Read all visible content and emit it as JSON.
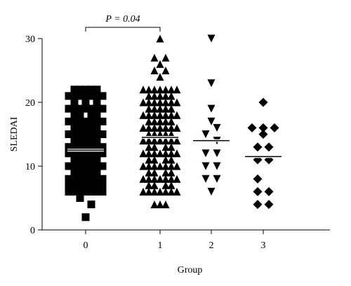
{
  "chart_data": {
    "type": "scatter",
    "subtype": "dot-plot",
    "xlabel": "Group",
    "ylabel": "SLEDAI",
    "categories": [
      "0",
      "1",
      "2",
      "3"
    ],
    "ylim": [
      0,
      30
    ],
    "yticks": [
      0,
      10,
      20,
      30
    ],
    "grid": false,
    "legend": "none",
    "marker_color": "#000000",
    "annotations": [
      {
        "text": "P = 0.04",
        "between": [
          "0",
          "1"
        ]
      }
    ],
    "series": [
      {
        "category": "0",
        "marker": "square",
        "median": 12.5,
        "points": [
          {
            "y": 2,
            "offsets": [
              0
            ]
          },
          {
            "y": 4,
            "offsets": [
              1
            ]
          },
          {
            "y": 5,
            "offsets": [
              -1
            ]
          },
          {
            "y": 6,
            "offsets": [
              -3,
              -2,
              -1,
              0,
              1,
              2,
              3
            ]
          },
          {
            "y": 7,
            "offsets": [
              -3,
              -2,
              -1,
              0,
              1,
              2,
              3
            ]
          },
          {
            "y": 8,
            "offsets": [
              -3,
              -2,
              -1,
              0,
              1,
              2,
              3
            ]
          },
          {
            "y": 9,
            "offsets": [
              -2,
              -1,
              0,
              1,
              2
            ]
          },
          {
            "y": 10,
            "offsets": [
              -3,
              -2,
              -1,
              0,
              1,
              2,
              3
            ]
          },
          {
            "y": 11,
            "offsets": [
              -2,
              -1,
              0,
              1,
              2
            ]
          },
          {
            "y": 12,
            "offsets": [
              -3,
              -2,
              -1,
              0,
              1,
              2,
              3
            ]
          },
          {
            "y": 13,
            "offsets": [
              -3,
              -2,
              -1,
              0,
              1,
              2,
              3
            ]
          },
          {
            "y": 14,
            "offsets": [
              -2,
              -1,
              0,
              1,
              2
            ]
          },
          {
            "y": 15,
            "offsets": [
              -3,
              -2,
              -1,
              0,
              1,
              2,
              3
            ]
          },
          {
            "y": 16,
            "offsets": [
              -2,
              -1,
              0,
              1,
              2
            ]
          },
          {
            "y": 17,
            "offsets": [
              -3,
              -2,
              -1,
              0,
              1,
              2,
              3
            ]
          },
          {
            "y": 18,
            "offsets": [
              -2,
              -1,
              1,
              2
            ]
          },
          {
            "y": 19,
            "offsets": [
              -3,
              -2,
              -1,
              0,
              1,
              2,
              3
            ]
          },
          {
            "y": 20,
            "offsets": [
              -2,
              0,
              2
            ]
          },
          {
            "y": 21,
            "offsets": [
              -3,
              -2,
              -1,
              0,
              1,
              2,
              3
            ]
          },
          {
            "y": 22,
            "offsets": [
              -2,
              -1,
              0,
              1,
              2
            ]
          }
        ]
      },
      {
        "category": "1",
        "marker": "triangle-up",
        "median": 14.5,
        "points": [
          {
            "y": 4,
            "offsets": [
              -1,
              0,
              1
            ]
          },
          {
            "y": 6,
            "offsets": [
              -3,
              -2,
              -1,
              0,
              1,
              2,
              3
            ]
          },
          {
            "y": 7,
            "offsets": [
              -2,
              -1,
              1,
              2
            ]
          },
          {
            "y": 8,
            "offsets": [
              -3,
              -2,
              -1,
              0,
              1,
              2,
              3
            ]
          },
          {
            "y": 9,
            "offsets": [
              -2,
              -1,
              1,
              2
            ]
          },
          {
            "y": 10,
            "offsets": [
              -3,
              -2,
              -1,
              0,
              1,
              2,
              3
            ]
          },
          {
            "y": 11,
            "offsets": [
              -2,
              -1,
              1,
              2
            ]
          },
          {
            "y": 12,
            "offsets": [
              -3,
              -2,
              -1,
              0,
              1,
              2,
              3
            ]
          },
          {
            "y": 13,
            "offsets": [
              -2,
              -1,
              1,
              2
            ]
          },
          {
            "y": 14,
            "offsets": [
              -3,
              -2,
              -1,
              0,
              1,
              2,
              3
            ]
          },
          {
            "y": 15,
            "offsets": [
              -2,
              -1,
              0,
              1,
              2
            ]
          },
          {
            "y": 16,
            "offsets": [
              -3,
              -2,
              -1,
              0,
              1,
              2,
              3
            ]
          },
          {
            "y": 17,
            "offsets": [
              -2,
              -1,
              0,
              1,
              2
            ]
          },
          {
            "y": 18,
            "offsets": [
              -3,
              -2,
              -1,
              0,
              1,
              2,
              3
            ]
          },
          {
            "y": 19,
            "offsets": [
              -2,
              -1,
              0,
              1,
              2
            ]
          },
          {
            "y": 20,
            "offsets": [
              -3,
              -2,
              -1,
              0,
              1,
              2,
              3
            ]
          },
          {
            "y": 21,
            "offsets": [
              -2,
              -1,
              0,
              1,
              2
            ]
          },
          {
            "y": 22,
            "offsets": [
              -3,
              -2,
              -1,
              0,
              1,
              2,
              3
            ]
          },
          {
            "y": 24,
            "offsets": [
              0
            ]
          },
          {
            "y": 25,
            "offsets": [
              -1,
              1
            ]
          },
          {
            "y": 26,
            "offsets": [
              0
            ]
          },
          {
            "y": 27,
            "offsets": [
              -1,
              1
            ]
          },
          {
            "y": 30,
            "offsets": [
              0
            ]
          }
        ]
      },
      {
        "category": "2",
        "marker": "triangle-down",
        "median": 14,
        "points": [
          {
            "y": 6,
            "offsets": [
              0
            ]
          },
          {
            "y": 8,
            "offsets": [
              -1,
              1
            ]
          },
          {
            "y": 10,
            "offsets": [
              -1,
              1
            ]
          },
          {
            "y": 12,
            "offsets": [
              -1,
              1
            ]
          },
          {
            "y": 14,
            "offsets": [
              1
            ]
          },
          {
            "y": 15,
            "offsets": [
              -1
            ]
          },
          {
            "y": 16,
            "offsets": [
              1
            ]
          },
          {
            "y": 17,
            "offsets": [
              0
            ]
          },
          {
            "y": 19,
            "offsets": [
              0
            ]
          },
          {
            "y": 23,
            "offsets": [
              0
            ]
          },
          {
            "y": 30,
            "offsets": [
              0
            ]
          }
        ]
      },
      {
        "category": "3",
        "marker": "diamond",
        "median": 11.5,
        "points": [
          {
            "y": 4,
            "offsets": [
              -1,
              1
            ]
          },
          {
            "y": 6,
            "offsets": [
              -1,
              1
            ]
          },
          {
            "y": 8,
            "offsets": [
              -1
            ]
          },
          {
            "y": 11,
            "offsets": [
              -1,
              1
            ]
          },
          {
            "y": 13,
            "offsets": [
              -1,
              1
            ]
          },
          {
            "y": 15,
            "offsets": [
              0
            ]
          },
          {
            "y": 16,
            "offsets": [
              -2,
              0,
              2
            ]
          },
          {
            "y": 20,
            "offsets": [
              0
            ]
          }
        ]
      }
    ]
  }
}
